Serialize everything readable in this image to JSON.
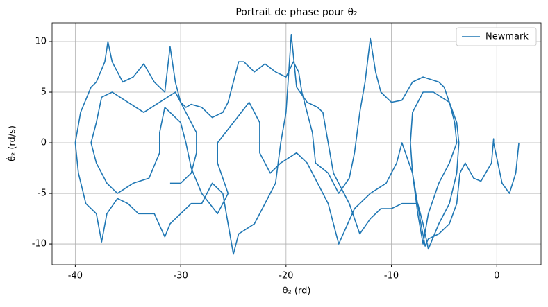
{
  "chart_data": {
    "type": "line",
    "title": "Portrait de phase pour θ₂",
    "x_label": "θ₂ (rd)",
    "y_label": "θ̇₂ (rd/s)",
    "xlim": [
      -42.2,
      4.2
    ],
    "ylim": [
      -12.05,
      11.85
    ],
    "xticks": [
      -40,
      -30,
      -20,
      -10,
      0
    ],
    "yticks": [
      -10,
      -5,
      0,
      5,
      10
    ],
    "grid": true,
    "legend": "upper right",
    "x": [
      2.1,
      1.8,
      1.2,
      0.5,
      -0.3,
      -0.3,
      -0.5,
      -1.5,
      -2.2,
      -3,
      -3.5,
      -3.8,
      -4.5,
      -5.5,
      -6.5,
      -6.8,
      -7.2,
      -8,
      -8.2,
      -8,
      -7,
      -6,
      -4.5,
      -3.8,
      -3.6,
      -3.8,
      -4.5,
      -5.5,
      -6.5,
      -7,
      -7.5,
      -9,
      -10,
      -11,
      -12,
      -13,
      -14,
      -14.5,
      -15.5,
      -16,
      -16.5,
      -17,
      -18,
      -19,
      -19.5,
      -20,
      -20.5,
      -21,
      -22,
      -23,
      -24.5,
      -25,
      -25.5,
      -26,
      -27,
      -28,
      -29,
      -30,
      -31,
      -31.5,
      -32.5,
      -34,
      -35,
      -36,
      -37,
      -37.5,
      -38,
      -39,
      -39.7,
      -40,
      -39.5,
      -38.5,
      -38,
      -37.2,
      -36.9,
      -36.5,
      -35.5,
      -34.5,
      -33.5,
      -32.5,
      -31.5,
      -31,
      -30.5,
      -30,
      -29.5,
      -29,
      -28,
      -27,
      -26,
      -25.5,
      -25,
      -24.5,
      -24,
      -23,
      -22,
      -21,
      -20,
      -19.3,
      -18.8,
      -18.5,
      -18,
      -17.5,
      -17.2,
      -16,
      -15,
      -14,
      -13.5,
      -13,
      -12.5,
      -12,
      -11.5,
      -11,
      -10,
      -9,
      -8,
      -7,
      -5.5,
      -5,
      -4.5,
      -4,
      -3.8,
      -4.5,
      -5.5,
      -6.5,
      -7,
      -7.5,
      -8,
      -9,
      -9.5,
      -10.5,
      -12,
      -13.5,
      -15,
      -16,
      -17,
      -18,
      -19,
      -20.5,
      -21.5,
      -22.5,
      -22.5,
      -23.5,
      -25,
      -26.5,
      -26.5,
      -25.5,
      -26.5,
      -28,
      -29,
      -29.5,
      -30,
      -31.5,
      -32,
      -32,
      -33,
      -34.5,
      -36,
      -37,
      -38,
      -38.5,
      -38,
      -37.5,
      -36.5,
      -35,
      -33.5,
      -32,
      -30.5,
      -29.5,
      -28.5,
      -28.5,
      -29,
      -30,
      -31
    ],
    "series": [
      {
        "name": "Newmark",
        "color": "#1f77b4",
        "values": [
          0,
          -3,
          -5,
          -4,
          0,
          0.4,
          -2,
          -3.8,
          -3.5,
          -2,
          -3,
          -6,
          -8,
          -9,
          -9.5,
          -10.2,
          -8,
          -3,
          0,
          3,
          5,
          5,
          4,
          2,
          0,
          -3,
          -6,
          -8,
          -10.5,
          -8,
          -6,
          -6,
          -6.5,
          -6.5,
          -7.5,
          -9,
          -6,
          -5,
          -3,
          0,
          3,
          3.5,
          4,
          5.5,
          10.7,
          3,
          0,
          -4,
          -6,
          -8,
          -9,
          -11,
          -8,
          -5,
          -4,
          -6,
          -6,
          -7,
          -8,
          -9.3,
          -7,
          -7,
          -6,
          -5.5,
          -7,
          -9.8,
          -7,
          -6,
          -3,
          0,
          3,
          5.5,
          6,
          8,
          10,
          8,
          6,
          6.5,
          7.8,
          6,
          5,
          9.5,
          6,
          4,
          3.5,
          3.8,
          3.5,
          2.5,
          3,
          4,
          6,
          8,
          8,
          7,
          7.8,
          7,
          6.5,
          8,
          7,
          5,
          3,
          1,
          -2,
          -3,
          -5,
          -3.5,
          -1,
          3,
          6,
          10.3,
          7,
          5,
          4,
          4.2,
          6,
          6.5,
          6,
          5.5,
          4,
          2,
          0,
          -2,
          -4,
          -7,
          -10,
          -7,
          -3,
          0,
          -2,
          -4,
          -5,
          -6.5,
          -10,
          -6,
          -4,
          -2,
          -1,
          -2,
          -3,
          -1,
          2,
          4,
          2,
          0,
          -2,
          -5,
          -7,
          -5,
          -2.5,
          0,
          2,
          3.5,
          1,
          -1,
          -3.5,
          -4,
          -5,
          -4,
          -2,
          0,
          2,
          4.5,
          5,
          4,
          3,
          4,
          5,
          3,
          1,
          -1,
          -3,
          -4,
          -4
        ]
      }
    ]
  }
}
